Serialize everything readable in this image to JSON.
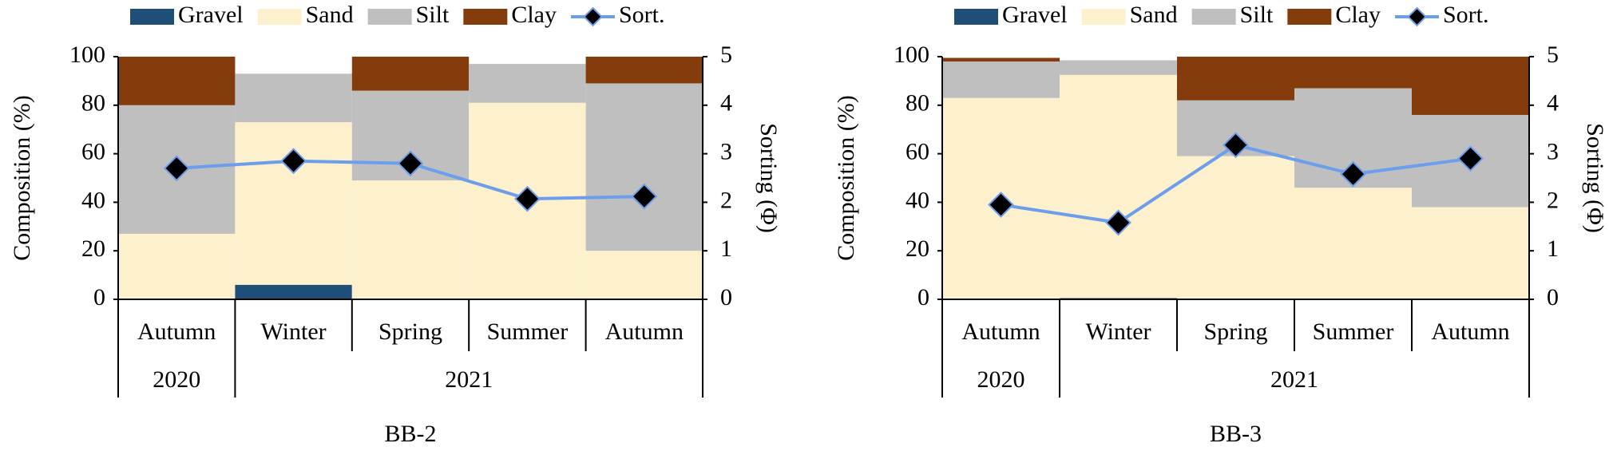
{
  "chart_data": [
    {
      "type": "bar",
      "stacked": true,
      "title": "BB-2",
      "categories": [
        "Autumn",
        "Winter",
        "Spring",
        "Summer",
        "Autumn"
      ],
      "groups": [
        {
          "label": "2020",
          "count": 1
        },
        {
          "label": "2021",
          "count": 4
        }
      ],
      "y_label": "Composition (%)",
      "y2_label": "Sorting (Φ)",
      "ylim": [
        0,
        100
      ],
      "yticks": [
        0,
        20,
        40,
        60,
        80,
        100
      ],
      "y2lim": [
        0,
        5
      ],
      "y2ticks": [
        0,
        1,
        2,
        3,
        4,
        5
      ],
      "series": [
        {
          "name": "Gravel",
          "color": "#1f4e79",
          "values": [
            0,
            6,
            0,
            0,
            0
          ]
        },
        {
          "name": "Sand",
          "color": "#fdf0cc",
          "values": [
            27,
            67,
            49,
            81,
            20
          ]
        },
        {
          "name": "Silt",
          "color": "#bfbfbf",
          "values": [
            53,
            20,
            37,
            16,
            69
          ]
        },
        {
          "name": "Clay",
          "color": "#843c0c",
          "values": [
            20,
            0,
            14,
            0,
            11
          ]
        },
        {
          "name": "Sort.",
          "type": "line",
          "axis": "y2",
          "color": "#6d9eeb",
          "marker_color": "#000000",
          "values": [
            2.7,
            2.85,
            2.8,
            2.07,
            2.12
          ]
        }
      ]
    },
    {
      "type": "bar",
      "stacked": true,
      "title": "BB-3",
      "categories": [
        "Autumn",
        "Winter",
        "Spring",
        "Summer",
        "Autumn"
      ],
      "groups": [
        {
          "label": "2020",
          "count": 1
        },
        {
          "label": "2021",
          "count": 4
        }
      ],
      "y_label": "Composition (%)",
      "y2_label": "Sorting (Φ)",
      "ylim": [
        0,
        100
      ],
      "yticks": [
        0,
        20,
        40,
        60,
        80,
        100
      ],
      "y2lim": [
        0,
        5
      ],
      "y2ticks": [
        0,
        1,
        2,
        3,
        4,
        5
      ],
      "series": [
        {
          "name": "Gravel",
          "color": "#1f4e79",
          "values": [
            0,
            0.5,
            0,
            0,
            0
          ]
        },
        {
          "name": "Sand",
          "color": "#fdf0cc",
          "values": [
            83,
            92,
            59,
            46,
            38
          ]
        },
        {
          "name": "Silt",
          "color": "#bfbfbf",
          "values": [
            15,
            6,
            23,
            41,
            38
          ]
        },
        {
          "name": "Clay",
          "color": "#843c0c",
          "values": [
            1.5,
            0,
            18,
            13,
            24
          ]
        },
        {
          "name": "Sort.",
          "type": "line",
          "axis": "y2",
          "color": "#6d9eeb",
          "marker_color": "#000000",
          "values": [
            1.95,
            1.58,
            3.18,
            2.58,
            2.9
          ]
        }
      ]
    }
  ]
}
